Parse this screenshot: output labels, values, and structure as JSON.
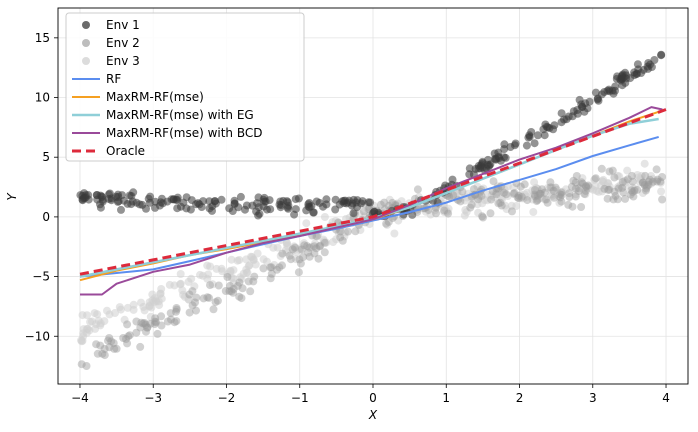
{
  "chart_data": {
    "type": "scatter",
    "title": "",
    "xlabel": "X",
    "ylabel": "Y",
    "xlim": [
      -4.3,
      4.3
    ],
    "ylim": [
      -14,
      17.5
    ],
    "xticks": [
      -4,
      -3,
      -2,
      -1,
      0,
      1,
      2,
      3,
      4
    ],
    "yticks": [
      -10,
      -5,
      0,
      5,
      10,
      15
    ],
    "grid": true,
    "legend_position": "top-left",
    "scatter_series": [
      {
        "name": "Env 1",
        "color": "#3a3a3a",
        "opacity": 0.55,
        "model": "env1"
      },
      {
        "name": "Env 2",
        "color": "#9a9a9a",
        "opacity": 0.45,
        "model": "env2"
      },
      {
        "name": "Env 3",
        "color": "#d0d0d0",
        "opacity": 0.55,
        "model": "env3"
      }
    ],
    "line_series": [
      {
        "name": "RF",
        "color": "#5b8def",
        "dash": "",
        "width": 2,
        "x": [
          -4,
          -3,
          -2.5,
          -2,
          -1.5,
          -1,
          -0.5,
          0,
          0.5,
          1,
          1.5,
          2,
          2.5,
          3,
          3.5,
          3.9
        ],
        "y": [
          -5.0,
          -4.4,
          -3.7,
          -3.0,
          -2.3,
          -1.6,
          -1.0,
          -0.3,
          0.4,
          1.2,
          2.2,
          3.1,
          4.0,
          5.1,
          6.0,
          6.7
        ]
      },
      {
        "name": "MaxRM-RF(mse)",
        "color": "#f5a021",
        "dash": "",
        "width": 2,
        "x": [
          -4,
          -3.5,
          -3,
          -2.5,
          -2,
          -1.5,
          -1,
          -0.5,
          0,
          0.5,
          1,
          1.5,
          2,
          2.5,
          3,
          3.5,
          3.9
        ],
        "y": [
          -5.3,
          -4.5,
          -3.9,
          -3.2,
          -2.7,
          -2.1,
          -1.5,
          -0.9,
          -0.2,
          0.8,
          2.0,
          3.2,
          4.4,
          5.6,
          6.8,
          8.0,
          8.8
        ]
      },
      {
        "name": "MaxRM-RF(mse) with EG",
        "color": "#8fcfd8",
        "dash": "",
        "width": 2.5,
        "x": [
          -4,
          -3.5,
          -3,
          -2.5,
          -2,
          -1.5,
          -1,
          -0.5,
          0,
          0.5,
          1,
          1.5,
          2,
          2.5,
          3,
          3.5,
          3.9
        ],
        "y": [
          -5.0,
          -4.4,
          -3.8,
          -3.2,
          -2.6,
          -2.0,
          -1.4,
          -0.8,
          -0.1,
          0.8,
          2.0,
          3.2,
          4.4,
          5.6,
          6.8,
          7.8,
          8.2
        ]
      },
      {
        "name": "MaxRM-RF(mse) with BCD",
        "color": "#9a4a9a",
        "dash": "",
        "width": 2,
        "x": [
          -4,
          -3.7,
          -3.5,
          -3,
          -2.5,
          -2,
          -1.5,
          -1,
          -0.5,
          0,
          0.5,
          1,
          1.5,
          2,
          2.5,
          3,
          3.5,
          3.8,
          3.95
        ],
        "y": [
          -6.5,
          -6.5,
          -5.6,
          -4.6,
          -4.0,
          -3.0,
          -2.2,
          -1.6,
          -0.9,
          -0.2,
          1.0,
          2.4,
          3.6,
          4.8,
          5.8,
          7.0,
          8.3,
          9.2,
          9.0
        ]
      },
      {
        "name": "Oracle",
        "color": "#dd2a3b",
        "dash": "9,5",
        "width": 3,
        "x": [
          -4,
          -3,
          -2,
          -1,
          0,
          1,
          2,
          3,
          4
        ],
        "y": [
          -4.8,
          -3.6,
          -2.4,
          -1.2,
          0.0,
          2.25,
          4.5,
          6.75,
          9.0
        ]
      }
    ]
  }
}
